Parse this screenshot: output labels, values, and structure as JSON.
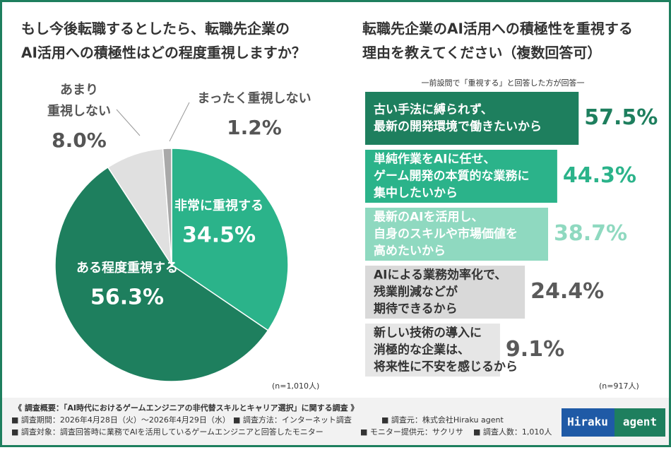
{
  "chart_data": [
    {
      "type": "pie",
      "title": [
        "もし今後転職するとしたら、転職先企業の",
        "AI活用への積極性はどの程度重視しますか？"
      ],
      "categories": [
        [
          "非常に重視する"
        ],
        [
          "ある程度重視する"
        ],
        [
          "あまり",
          "重視しない"
        ],
        [
          "まったく重視しない"
        ]
      ],
      "values": [
        34.5,
        56.3,
        8.0,
        1.2
      ],
      "value_labels": [
        "34.5%",
        "56.3%",
        "8.0%",
        "1.2%"
      ],
      "colors": [
        "#2bb38a",
        "#1e7f5e",
        "#e0e0e0",
        "#a9a9a9"
      ],
      "note": "(n=1,010人)"
    },
    {
      "type": "bar",
      "title": [
        "転職先企業のAI活用への積極性を重視する",
        "理由を教えてください（複数回答可）"
      ],
      "subtitle": "一前設問で「重視する」と回答した方が回答一",
      "categories": [
        [
          "古い手法に縛られず、",
          "最新の開発環境で働きたいから"
        ],
        [
          "単純作業をAIに任せ、",
          "ゲーム開発の本質的な業務に",
          "集中したいから"
        ],
        [
          "最新のAIを活用し、",
          "自身のスキルや市場価値を",
          "高めたいから"
        ],
        [
          "AIによる業務効率化で、",
          "残業削減などが",
          "期待できるから"
        ],
        [
          "新しい技術の導入に",
          "消極的な企業は、",
          "将来性に不安を感じるから"
        ]
      ],
      "values": [
        57.5,
        44.3,
        38.7,
        24.4,
        9.1
      ],
      "value_labels": [
        "57.5%",
        "44.3%",
        "38.7%",
        "24.4%",
        "9.1%"
      ],
      "colors": [
        "#1e7f5e",
        "#2bb38a",
        "#8fd9c0",
        "#d9d9d9",
        "#e6e6e6"
      ],
      "label_colors": [
        "#1e7f5e",
        "#2bb38a",
        "#8fd9c0",
        "#5a5a5a",
        "#5a5a5a"
      ],
      "note": "(n=917人)"
    }
  ],
  "footer": {
    "lines": [
      [
        "《 調査概要：「AI時代におけるゲームエンジニアの非代替スキルとキャリア選択」に関する調査 》"
      ],
      [
        "■ 調査期間：2026年4月28日（火）～2026年4月29日（水）",
        "■ 調査方法：インターネット調査",
        "■ 調査元：株式会社Hiraku agent"
      ],
      [
        "■ 調査対象：調査回答時に業務でAIを活用しているゲームエンジニアと回答したモニター",
        "■ モニター提供元：サクリサ",
        "■ 調査人数：1,010人"
      ]
    ],
    "logo": [
      "Hiraku",
      "agent"
    ]
  }
}
